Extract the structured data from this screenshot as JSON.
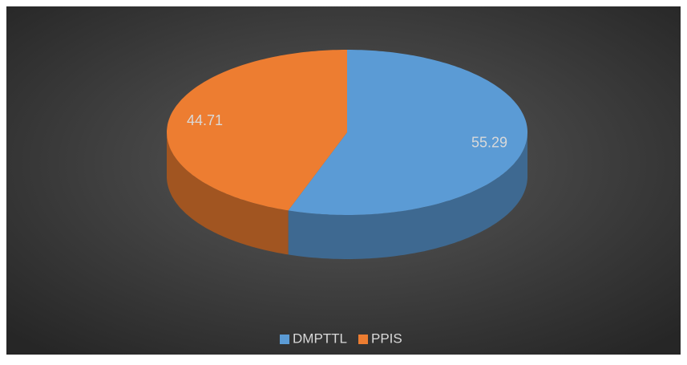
{
  "chart_data": {
    "type": "pie",
    "categories": [
      "DMPTTL",
      "PPIS"
    ],
    "values": [
      55.29,
      44.71
    ],
    "colors": [
      "#5b9bd5",
      "#ed7d31"
    ],
    "legend": "bottom"
  }
}
